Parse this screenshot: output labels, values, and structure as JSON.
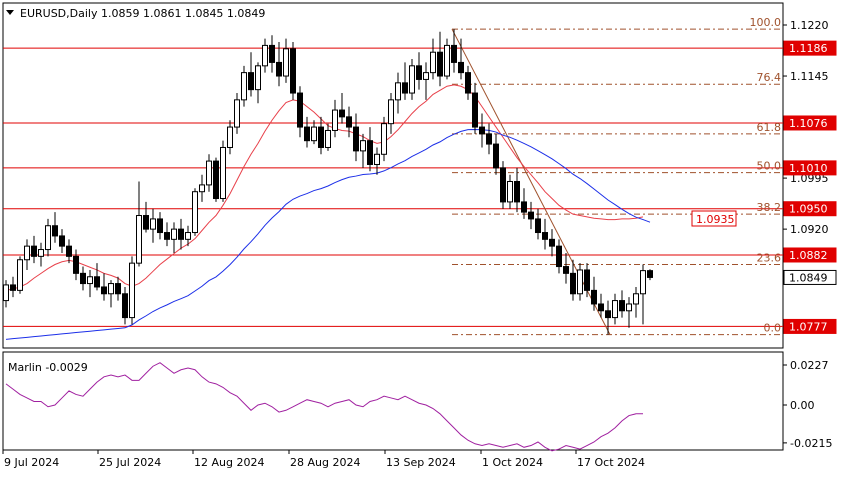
{
  "header": {
    "symbol_line": "EURUSD,Daily  1.0859 1.0861 1.0845 1.0849"
  },
  "price_axis": {
    "ticks": [
      "1.1220",
      "1.1145",
      "1.0995",
      "1.0920",
      "1.0777"
    ],
    "right_labels": [
      {
        "text": "1.1186",
        "value": 1.1186,
        "style": "red"
      },
      {
        "text": "1.1076",
        "value": 1.1076,
        "style": "red"
      },
      {
        "text": "1.1010",
        "value": 1.101,
        "style": "red"
      },
      {
        "text": "1.0950",
        "value": 1.095,
        "style": "red"
      },
      {
        "text": "1.0882",
        "value": 1.0882,
        "style": "red"
      },
      {
        "text": "1.0849",
        "value": 1.0849,
        "style": "current"
      },
      {
        "text": "1.0777",
        "value": 1.0777,
        "style": "red"
      }
    ]
  },
  "fib": {
    "levels": [
      {
        "label": "100.0",
        "value": 1.1214
      },
      {
        "label": "76.4",
        "value": 1.1133
      },
      {
        "label": "61.8",
        "value": 1.106
      },
      {
        "label": "50.0",
        "value": 1.1003
      },
      {
        "label": "38.2",
        "value": 1.0942
      },
      {
        "label": "23.6",
        "value": 1.0868
      },
      {
        "label": "0.0",
        "value": 1.0765
      }
    ],
    "box_label": "1.0935"
  },
  "oscillator": {
    "title": "Marlin -0.0029",
    "ticks": [
      "0.0227",
      "0.00",
      "-0.0215"
    ],
    "tick_values": [
      0.0227,
      0.0,
      -0.0215
    ],
    "values": [
      0.012,
      0.009,
      0.006,
      0.004,
      0.002,
      0.002,
      -0.001,
      0.0,
      0.004,
      0.008,
      0.006,
      0.005,
      0.009,
      0.013,
      0.016,
      0.017,
      0.016,
      0.017,
      0.014,
      0.014,
      0.018,
      0.022,
      0.024,
      0.021,
      0.018,
      0.02,
      0.021,
      0.02,
      0.016,
      0.013,
      0.012,
      0.01,
      0.007,
      0.005,
      0.001,
      -0.003,
      0.0,
      0.001,
      -0.001,
      -0.004,
      -0.003,
      -0.001,
      0.001,
      0.003,
      0.002,
      0.001,
      -0.001,
      0.001,
      0.002,
      0.003,
      0.0,
      -0.001,
      0.002,
      0.003,
      0.005,
      0.004,
      0.003,
      0.005,
      0.003,
      0.001,
      0.0,
      -0.002,
      -0.005,
      -0.009,
      -0.013,
      -0.017,
      -0.02,
      -0.022,
      -0.023,
      -0.022,
      -0.023,
      -0.024,
      -0.023,
      -0.022,
      -0.024,
      -0.023,
      -0.021,
      -0.024,
      -0.026,
      -0.025,
      -0.023,
      -0.024,
      -0.025,
      -0.023,
      -0.021,
      -0.018,
      -0.016,
      -0.013,
      -0.009,
      -0.006,
      -0.005,
      -0.005
    ]
  },
  "time_axis": {
    "labels": [
      "9 Jul 2024",
      "25 Jul 2024",
      "12 Aug 2024",
      "28 Aug 2024",
      "13 Sep 2024",
      "1 Oct 2024",
      "17 Oct 2024"
    ]
  },
  "colors": {
    "bull": "#ffffff",
    "bear": "#000000",
    "hline": "#e00000",
    "ma_fast": "#e8404a",
    "ma_slow": "#1c2fe8",
    "fib": "#a0522d",
    "osc": "#a020a0"
  },
  "chart_data": {
    "type": "candlestick",
    "symbol": "EURUSD",
    "timeframe": "Daily",
    "ohlc_last": {
      "open": 1.0859,
      "high": 1.0861,
      "low": 1.0845,
      "close": 1.0849
    },
    "horizontal_levels": [
      1.1186,
      1.1076,
      1.101,
      1.095,
      1.0882,
      1.0777
    ],
    "candles": [
      [
        1.0815,
        1.0845,
        1.0805,
        1.0838
      ],
      [
        1.0838,
        1.085,
        1.082,
        1.083
      ],
      [
        1.083,
        1.088,
        1.0825,
        1.0875
      ],
      [
        1.0875,
        1.0905,
        1.086,
        1.0895
      ],
      [
        1.0895,
        1.091,
        1.087,
        1.088
      ],
      [
        1.088,
        1.09,
        1.0865,
        1.089
      ],
      [
        1.089,
        1.0935,
        1.088,
        1.0925
      ],
      [
        1.0925,
        1.0945,
        1.09,
        1.091
      ],
      [
        1.091,
        1.092,
        1.0885,
        1.0895
      ],
      [
        1.0895,
        1.0905,
        1.087,
        1.088
      ],
      [
        1.088,
        1.089,
        1.0845,
        1.0855
      ],
      [
        1.0855,
        1.0865,
        1.083,
        1.084
      ],
      [
        1.084,
        1.086,
        1.082,
        1.085
      ],
      [
        1.085,
        1.087,
        1.083,
        1.0835
      ],
      [
        1.0835,
        1.0855,
        1.0815,
        1.0825
      ],
      [
        1.0825,
        1.0845,
        1.0805,
        1.084
      ],
      [
        1.084,
        1.085,
        1.0815,
        1.0825
      ],
      [
        1.0825,
        1.0835,
        1.078,
        1.079
      ],
      [
        1.079,
        1.088,
        1.078,
        1.087
      ],
      [
        1.087,
        1.099,
        1.0865,
        1.094
      ],
      [
        1.094,
        1.096,
        1.0915,
        1.092
      ],
      [
        1.092,
        1.095,
        1.09,
        1.0935
      ],
      [
        1.0935,
        1.0945,
        1.0905,
        1.0915
      ],
      [
        1.0915,
        1.093,
        1.0895,
        1.0905
      ],
      [
        1.0905,
        1.093,
        1.0885,
        1.092
      ],
      [
        1.092,
        1.0935,
        1.089,
        1.0905
      ],
      [
        1.0905,
        1.0925,
        1.0895,
        1.0915
      ],
      [
        1.0915,
        1.098,
        1.091,
        1.0975
      ],
      [
        1.0975,
        1.1,
        1.096,
        1.0985
      ],
      [
        1.0985,
        1.103,
        1.0975,
        1.102
      ],
      [
        1.102,
        1.1025,
        1.096,
        1.0965
      ],
      [
        1.0965,
        1.105,
        1.096,
        1.104
      ],
      [
        1.104,
        1.108,
        1.103,
        1.107
      ],
      [
        1.107,
        1.112,
        1.106,
        1.111
      ],
      [
        1.111,
        1.116,
        1.11,
        1.115
      ],
      [
        1.115,
        1.118,
        1.1115,
        1.1125
      ],
      [
        1.1125,
        1.1165,
        1.1105,
        1.116
      ],
      [
        1.116,
        1.12,
        1.115,
        1.119
      ],
      [
        1.119,
        1.1205,
        1.115,
        1.1165
      ],
      [
        1.1165,
        1.1195,
        1.113,
        1.1145
      ],
      [
        1.1145,
        1.12,
        1.1135,
        1.1185
      ],
      [
        1.1185,
        1.1195,
        1.111,
        1.112
      ],
      [
        1.112,
        1.113,
        1.1055,
        1.107
      ],
      [
        1.107,
        1.1085,
        1.104,
        1.105
      ],
      [
        1.105,
        1.108,
        1.1045,
        1.107
      ],
      [
        1.107,
        1.1085,
        1.103,
        1.104
      ],
      [
        1.104,
        1.1075,
        1.1035,
        1.1065
      ],
      [
        1.1065,
        1.111,
        1.1055,
        1.1095
      ],
      [
        1.1095,
        1.112,
        1.1075,
        1.1085
      ],
      [
        1.1085,
        1.11,
        1.1055,
        1.107
      ],
      [
        1.107,
        1.109,
        1.102,
        1.1035
      ],
      [
        1.1035,
        1.106,
        1.101,
        1.105
      ],
      [
        1.105,
        1.107,
        1.1005,
        1.1015
      ],
      [
        1.1015,
        1.104,
        1.1,
        1.103
      ],
      [
        1.103,
        1.1085,
        1.102,
        1.1075
      ],
      [
        1.1075,
        1.112,
        1.106,
        1.111
      ],
      [
        1.111,
        1.115,
        1.109,
        1.1135
      ],
      [
        1.1135,
        1.1165,
        1.111,
        1.112
      ],
      [
        1.112,
        1.117,
        1.111,
        1.116
      ],
      [
        1.116,
        1.118,
        1.1125,
        1.114
      ],
      [
        1.114,
        1.1165,
        1.111,
        1.115
      ],
      [
        1.115,
        1.12,
        1.114,
        1.118
      ],
      [
        1.118,
        1.121,
        1.113,
        1.1145
      ],
      [
        1.1145,
        1.12,
        1.114,
        1.119
      ],
      [
        1.119,
        1.1214,
        1.115,
        1.1165
      ],
      [
        1.1165,
        1.12,
        1.114,
        1.115
      ],
      [
        1.115,
        1.116,
        1.111,
        1.112
      ],
      [
        1.112,
        1.1135,
        1.106,
        1.107
      ],
      [
        1.107,
        1.109,
        1.104,
        1.106
      ],
      [
        1.106,
        1.1075,
        1.103,
        1.1045
      ],
      [
        1.1045,
        1.106,
        1.1,
        1.101
      ],
      [
        1.101,
        1.102,
        1.095,
        1.096
      ],
      [
        1.096,
        1.1,
        1.095,
        1.099
      ],
      [
        1.099,
        1.101,
        1.0945,
        1.096
      ],
      [
        1.096,
        1.098,
        1.0935,
        1.0945
      ],
      [
        1.0945,
        1.096,
        1.092,
        1.0935
      ],
      [
        1.0935,
        1.095,
        1.0905,
        1.0915
      ],
      [
        1.0915,
        1.0935,
        1.089,
        1.0905
      ],
      [
        1.0905,
        1.092,
        1.088,
        1.0895
      ],
      [
        1.0895,
        1.0905,
        1.0855,
        1.0865
      ],
      [
        1.0865,
        1.0885,
        1.084,
        1.0855
      ],
      [
        1.0855,
        1.0875,
        1.0815,
        1.0825
      ],
      [
        1.0825,
        1.087,
        1.0815,
        1.086
      ],
      [
        1.086,
        1.087,
        1.082,
        1.083
      ],
      [
        1.083,
        1.085,
        1.08,
        1.081
      ],
      [
        1.081,
        1.0825,
        1.079,
        1.08
      ],
      [
        1.08,
        1.0815,
        1.0765,
        1.079
      ],
      [
        1.079,
        1.0825,
        1.078,
        1.0815
      ],
      [
        1.0815,
        1.083,
        1.079,
        1.08
      ],
      [
        1.08,
        1.082,
        1.0775,
        1.081
      ],
      [
        1.081,
        1.0835,
        1.079,
        1.0825
      ],
      [
        1.0825,
        1.0868,
        1.078,
        1.0859
      ],
      [
        1.0859,
        1.0861,
        1.0845,
        1.0849
      ]
    ],
    "ma_fast": [
      1.083,
      1.0832,
      1.0835,
      1.084,
      1.0848,
      1.0855,
      1.0862,
      1.0868,
      1.0872,
      1.0874,
      1.0872,
      1.0868,
      1.0864,
      1.086,
      1.0855,
      1.0852,
      1.0848,
      1.084,
      1.0836,
      1.084,
      1.0848,
      1.0858,
      1.0868,
      1.0876,
      1.0884,
      1.0892,
      1.0898,
      1.0906,
      1.0918,
      1.093,
      1.094,
      1.0955,
      1.0972,
      1.0992,
      1.1012,
      1.103,
      1.1046,
      1.1064,
      1.108,
      1.1094,
      1.1106,
      1.111,
      1.1108,
      1.11,
      1.1092,
      1.1082,
      1.1072,
      1.1068,
      1.1065,
      1.1064,
      1.106,
      1.1056,
      1.105,
      1.1046,
      1.1048,
      1.1056,
      1.1066,
      1.1078,
      1.109,
      1.11,
      1.1108,
      1.1118,
      1.1124,
      1.113,
      1.1132,
      1.113,
      1.1125,
      1.1115,
      1.11,
      1.1085,
      1.107,
      1.1055,
      1.104,
      1.1025,
      1.1012,
      1.1,
      1.0988,
      1.0975,
      1.0965,
      1.0955,
      1.0948,
      1.0942,
      1.094,
      1.0938,
      1.0936,
      1.0935,
      1.0934,
      1.0934,
      1.0935,
      1.0935,
      1.0936,
      1.0938
    ]
  }
}
